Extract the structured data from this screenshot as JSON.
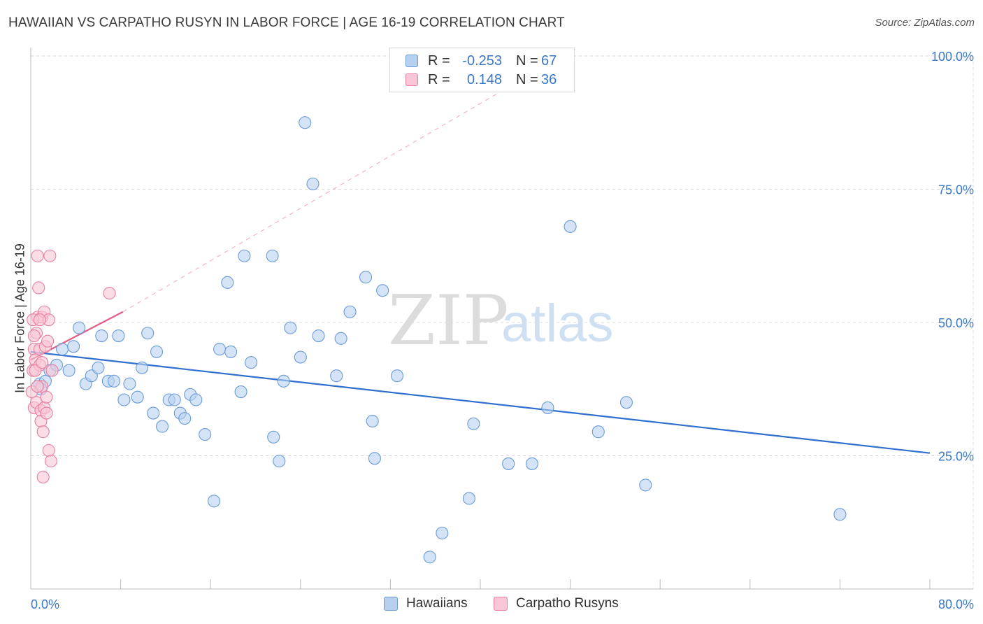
{
  "header": {
    "title": "HAWAIIAN VS CARPATHO RUSYN IN LABOR FORCE | AGE 16-19 CORRELATION CHART",
    "source": "Source: ZipAtlas.com"
  },
  "watermark": {
    "part1": "ZIP",
    "part2": "atlas"
  },
  "legend": {
    "rows": [
      {
        "r_label": "R =",
        "r_value": "-0.253",
        "n_label": "N =",
        "n_value": "67",
        "color": "#6a9bd8",
        "fill": "#b8d0f0"
      },
      {
        "r_label": "R =",
        "r_value": "0.148",
        "n_label": "N =",
        "n_value": "36",
        "color": "#e87fa0",
        "fill": "#f8c6d6"
      }
    ]
  },
  "bottom_legend": {
    "items": [
      {
        "label": "Hawaiians",
        "color": "#6a9bd8",
        "fill": "#b8d0f0"
      },
      {
        "label": "Carpatho Rusyns",
        "color": "#e87fa0",
        "fill": "#f8c6d6"
      }
    ]
  },
  "chart_data": {
    "type": "scatter",
    "title": "HAWAIIAN VS CARPATHO RUSYN IN LABOR FORCE | AGE 16-19 CORRELATION CHART",
    "xlabel": "",
    "ylabel": "In Labor Force | Age 16-19",
    "xlim": [
      0,
      80
    ],
    "ylim": [
      0,
      100
    ],
    "x_tick_labels": [
      "0.0%",
      "80.0%"
    ],
    "y_ticks": [
      25,
      50,
      75,
      100
    ],
    "y_tick_labels": [
      "25.0%",
      "50.0%",
      "75.0%",
      "100.0%"
    ],
    "grid": true,
    "series": [
      {
        "name": "Hawaiians",
        "color": "#6a9bd8",
        "fill": "#b8d0f0",
        "points": [
          [
            0.8,
            38.5
          ],
          [
            1.3,
            39
          ],
          [
            1.7,
            41
          ],
          [
            2.3,
            42
          ],
          [
            2.8,
            45
          ],
          [
            3.4,
            41
          ],
          [
            3.8,
            45.5
          ],
          [
            4.3,
            49
          ],
          [
            4.9,
            38.5
          ],
          [
            5.4,
            40
          ],
          [
            6.0,
            41.5
          ],
          [
            6.3,
            47.5
          ],
          [
            6.9,
            39
          ],
          [
            7.4,
            39
          ],
          [
            7.8,
            47.5
          ],
          [
            8.3,
            35.5
          ],
          [
            8.8,
            38.5
          ],
          [
            9.5,
            36
          ],
          [
            9.9,
            41.5
          ],
          [
            10.4,
            48
          ],
          [
            10.9,
            33
          ],
          [
            11.2,
            44.5
          ],
          [
            11.7,
            30.5
          ],
          [
            12.3,
            35.5
          ],
          [
            12.8,
            35.5
          ],
          [
            13.3,
            33
          ],
          [
            13.7,
            32
          ],
          [
            14.2,
            36.5
          ],
          [
            14.7,
            35.5
          ],
          [
            15.5,
            29
          ],
          [
            16.3,
            16.5
          ],
          [
            16.8,
            45
          ],
          [
            17.5,
            57.5
          ],
          [
            17.8,
            44.5
          ],
          [
            18.7,
            37
          ],
          [
            19.0,
            62.5
          ],
          [
            19.6,
            42.5
          ],
          [
            21.5,
            62.5
          ],
          [
            21.6,
            28.5
          ],
          [
            22.1,
            24
          ],
          [
            22.5,
            39
          ],
          [
            23.1,
            49
          ],
          [
            24.0,
            43.5
          ],
          [
            24.4,
            87.5
          ],
          [
            25.1,
            76
          ],
          [
            25.6,
            47.5
          ],
          [
            27.2,
            40
          ],
          [
            27.6,
            47
          ],
          [
            28.4,
            52
          ],
          [
            29.8,
            58.5
          ],
          [
            30.4,
            31.5
          ],
          [
            30.6,
            24.5
          ],
          [
            31.3,
            56
          ],
          [
            32.6,
            40
          ],
          [
            35.5,
            6
          ],
          [
            36.6,
            10.5
          ],
          [
            39.0,
            17
          ],
          [
            39.4,
            31
          ],
          [
            42.5,
            23.5
          ],
          [
            44.6,
            23.5
          ],
          [
            46.0,
            34
          ],
          [
            48.0,
            68
          ],
          [
            50.5,
            29.5
          ],
          [
            53.0,
            35
          ],
          [
            54.7,
            19.5
          ],
          [
            72.0,
            14
          ],
          [
            0.9,
            37.5
          ]
        ]
      },
      {
        "name": "Carpatho Rusyns",
        "color": "#e87fa0",
        "fill": "#f8c6d6",
        "points": [
          [
            0.1,
            37
          ],
          [
            0.2,
            41
          ],
          [
            0.3,
            45
          ],
          [
            0.3,
            34
          ],
          [
            0.4,
            43
          ],
          [
            0.5,
            48
          ],
          [
            0.5,
            35
          ],
          [
            0.6,
            51
          ],
          [
            0.6,
            62.5
          ],
          [
            0.7,
            56.5
          ],
          [
            0.8,
            42
          ],
          [
            0.8,
            45
          ],
          [
            0.9,
            33.5
          ],
          [
            0.9,
            31.5
          ],
          [
            1.0,
            51
          ],
          [
            1.0,
            38
          ],
          [
            1.1,
            29.5
          ],
          [
            1.1,
            21
          ],
          [
            1.2,
            52
          ],
          [
            1.2,
            34
          ],
          [
            1.3,
            45.5
          ],
          [
            1.4,
            36
          ],
          [
            1.5,
            46.5
          ],
          [
            1.6,
            26
          ],
          [
            1.6,
            50.5
          ],
          [
            1.7,
            62.5
          ],
          [
            1.8,
            24
          ],
          [
            0.2,
            50.5
          ],
          [
            0.4,
            41
          ],
          [
            0.6,
            38
          ],
          [
            1.0,
            42.5
          ],
          [
            0.8,
            50.5
          ],
          [
            1.9,
            41
          ],
          [
            7.0,
            55.5
          ],
          [
            0.3,
            47.5
          ],
          [
            1.4,
            33
          ]
        ]
      }
    ],
    "trend_lines": [
      {
        "series": "Hawaiians",
        "from": [
          0,
          44.5
        ],
        "to": [
          80,
          25.5
        ],
        "style": "solid"
      },
      {
        "series": "Carpatho Rusyns",
        "from": [
          0,
          43
        ],
        "to": [
          8.2,
          52
        ],
        "style": "solid"
      },
      {
        "series": "Carpatho Rusyns",
        "from": [
          8.2,
          52
        ],
        "to": [
          44,
          96
        ],
        "style": "dashed"
      }
    ]
  }
}
